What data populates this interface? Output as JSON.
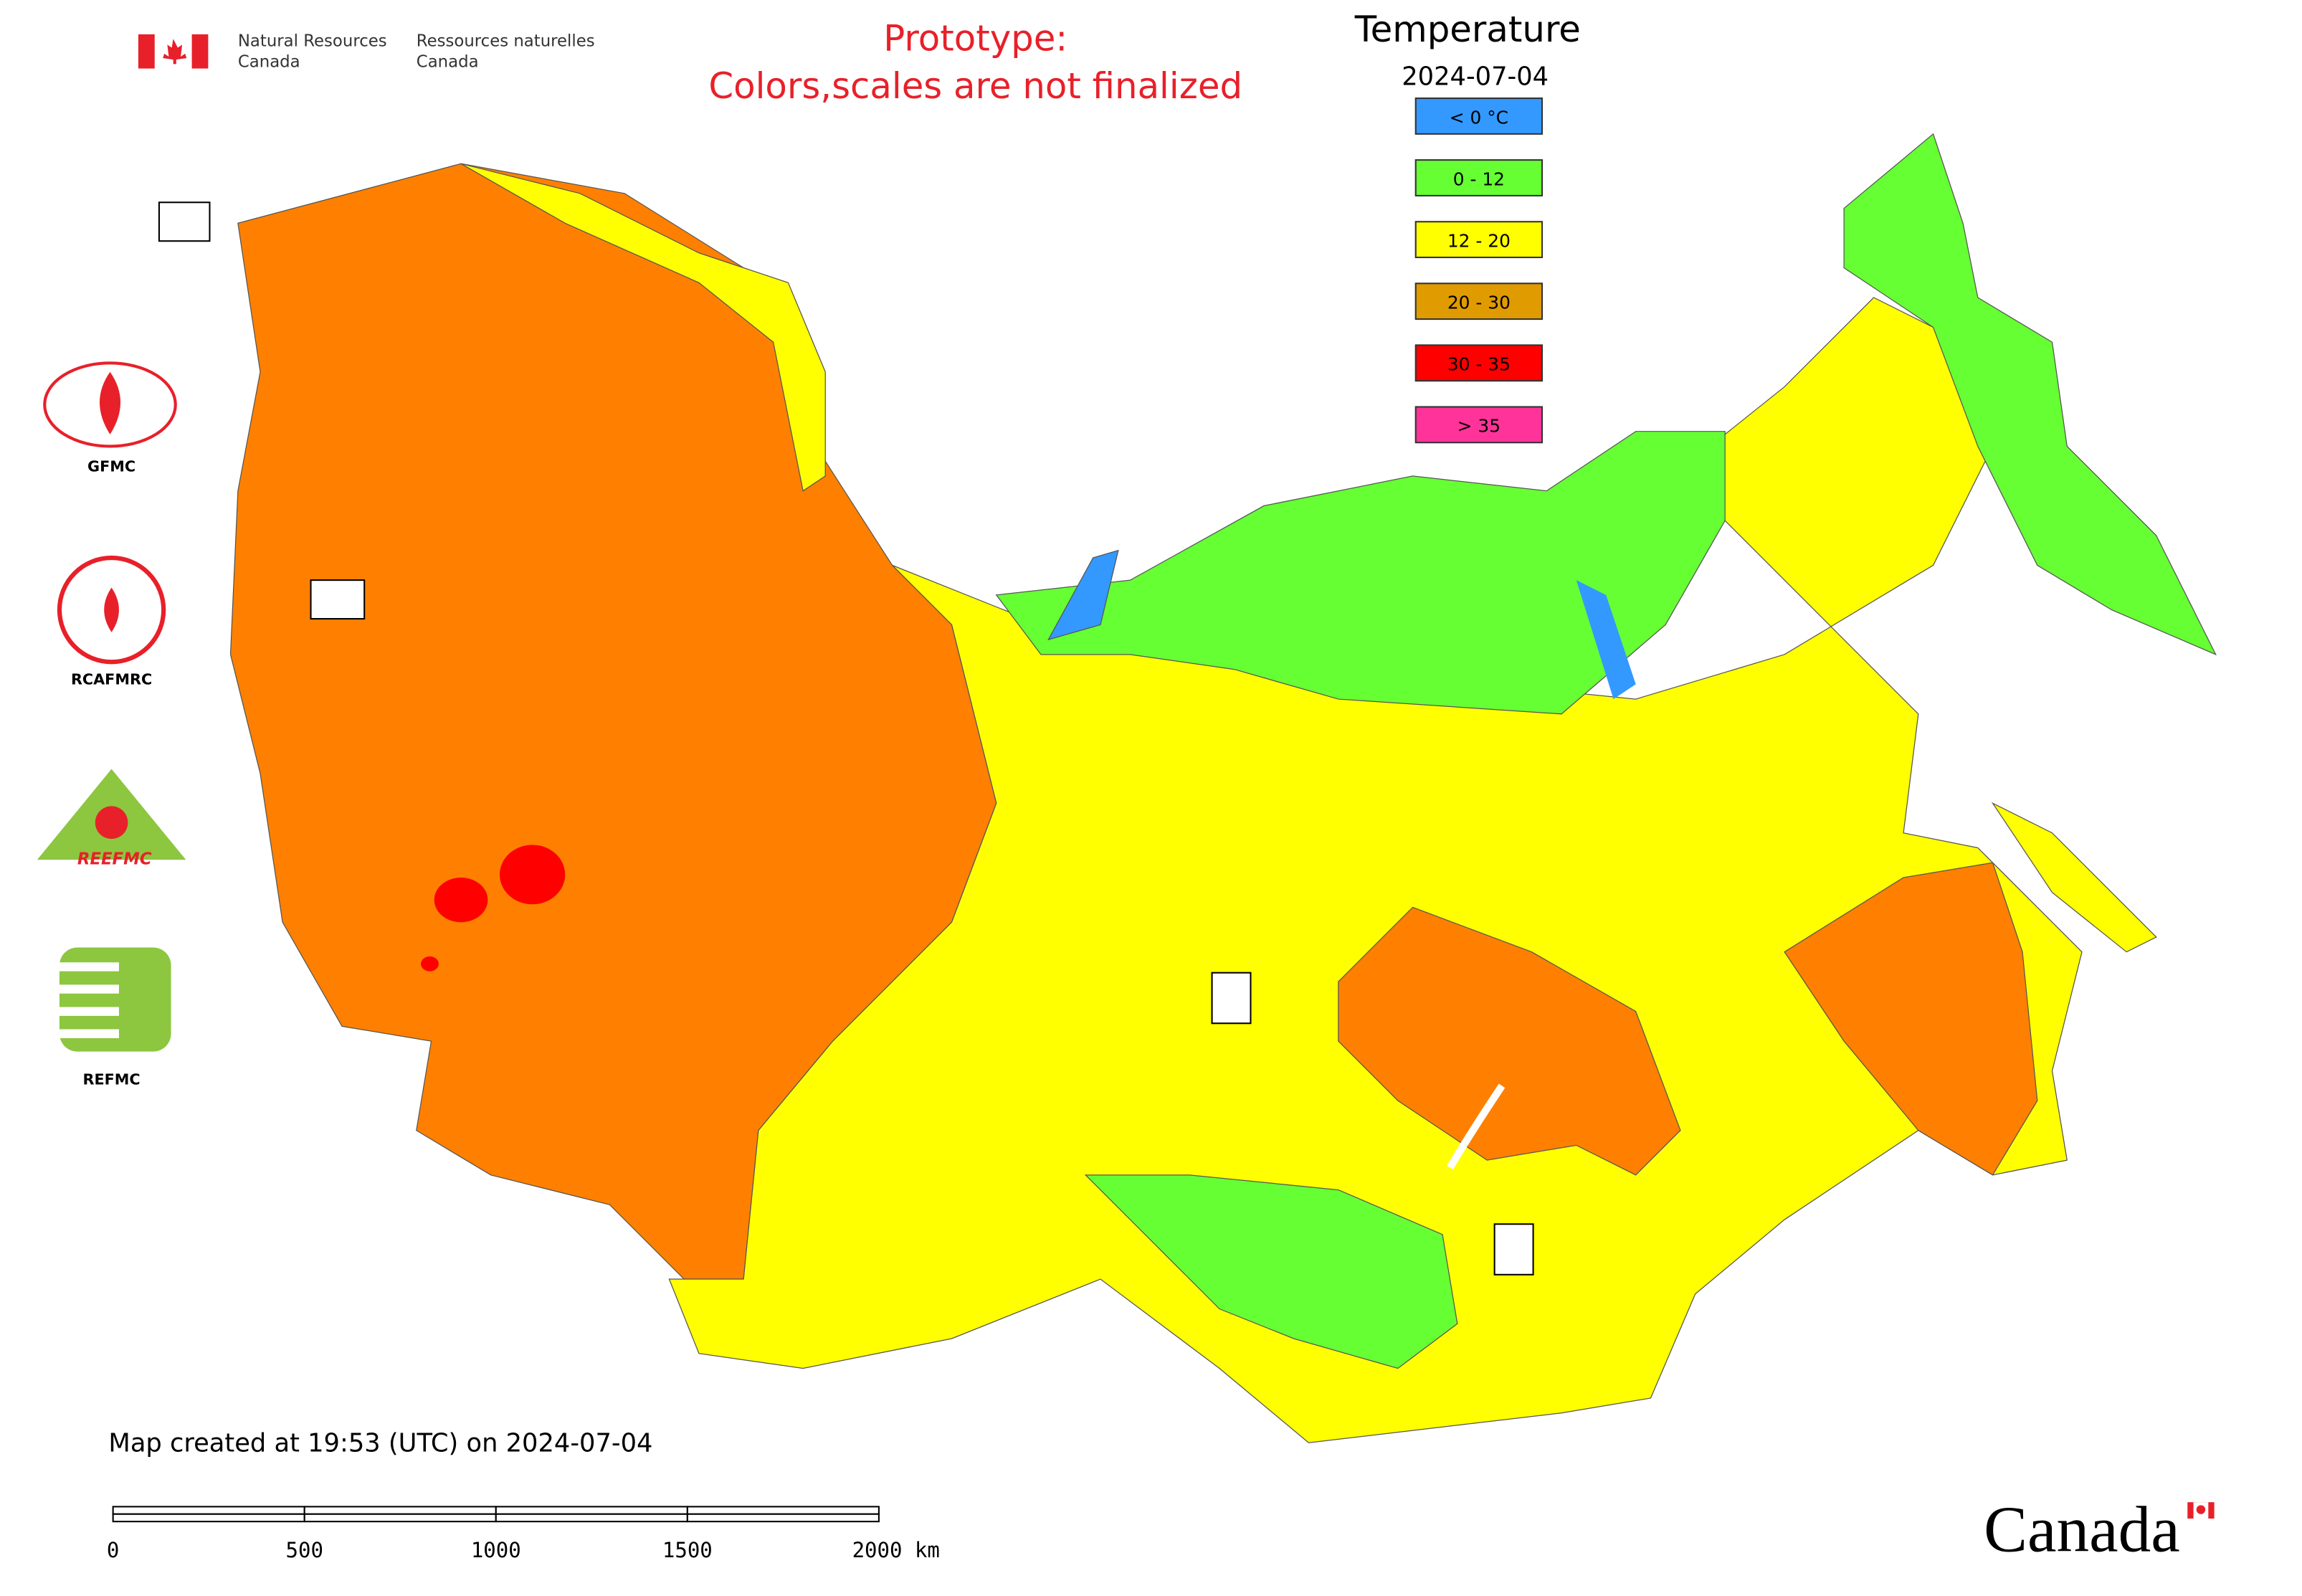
{
  "header": {
    "agency_en": [
      "Natural Resources",
      "Canada"
    ],
    "agency_fr": [
      "Ressources naturelles",
      "Canada"
    ]
  },
  "notice": [
    "Prototype:",
    "Colors,scales are not finalized"
  ],
  "legend": {
    "title": "Temperature",
    "date": "2024-07-04",
    "items": [
      {
        "label": "< 0 °C",
        "color": "#3399ff"
      },
      {
        "label": "0 - 12",
        "color": "#66ff33"
      },
      {
        "label": "12 - 20",
        "color": "#ffff00"
      },
      {
        "label": "20 - 30",
        "color": "#e09b00"
      },
      {
        "label": "30 - 35",
        "color": "#ff0000"
      },
      {
        "label": "> 35",
        "color": "#ff3399"
      }
    ]
  },
  "logos": [
    "GFMC",
    "RCAFMRC",
    "REEFMC",
    "REFMC"
  ],
  "footer": "Map created at 19:53 (UTC) on 2024-07-04",
  "scale_bar": [
    "0",
    "500",
    "1000",
    "1500",
    "2000 km"
  ],
  "wordmark": "Canada"
}
